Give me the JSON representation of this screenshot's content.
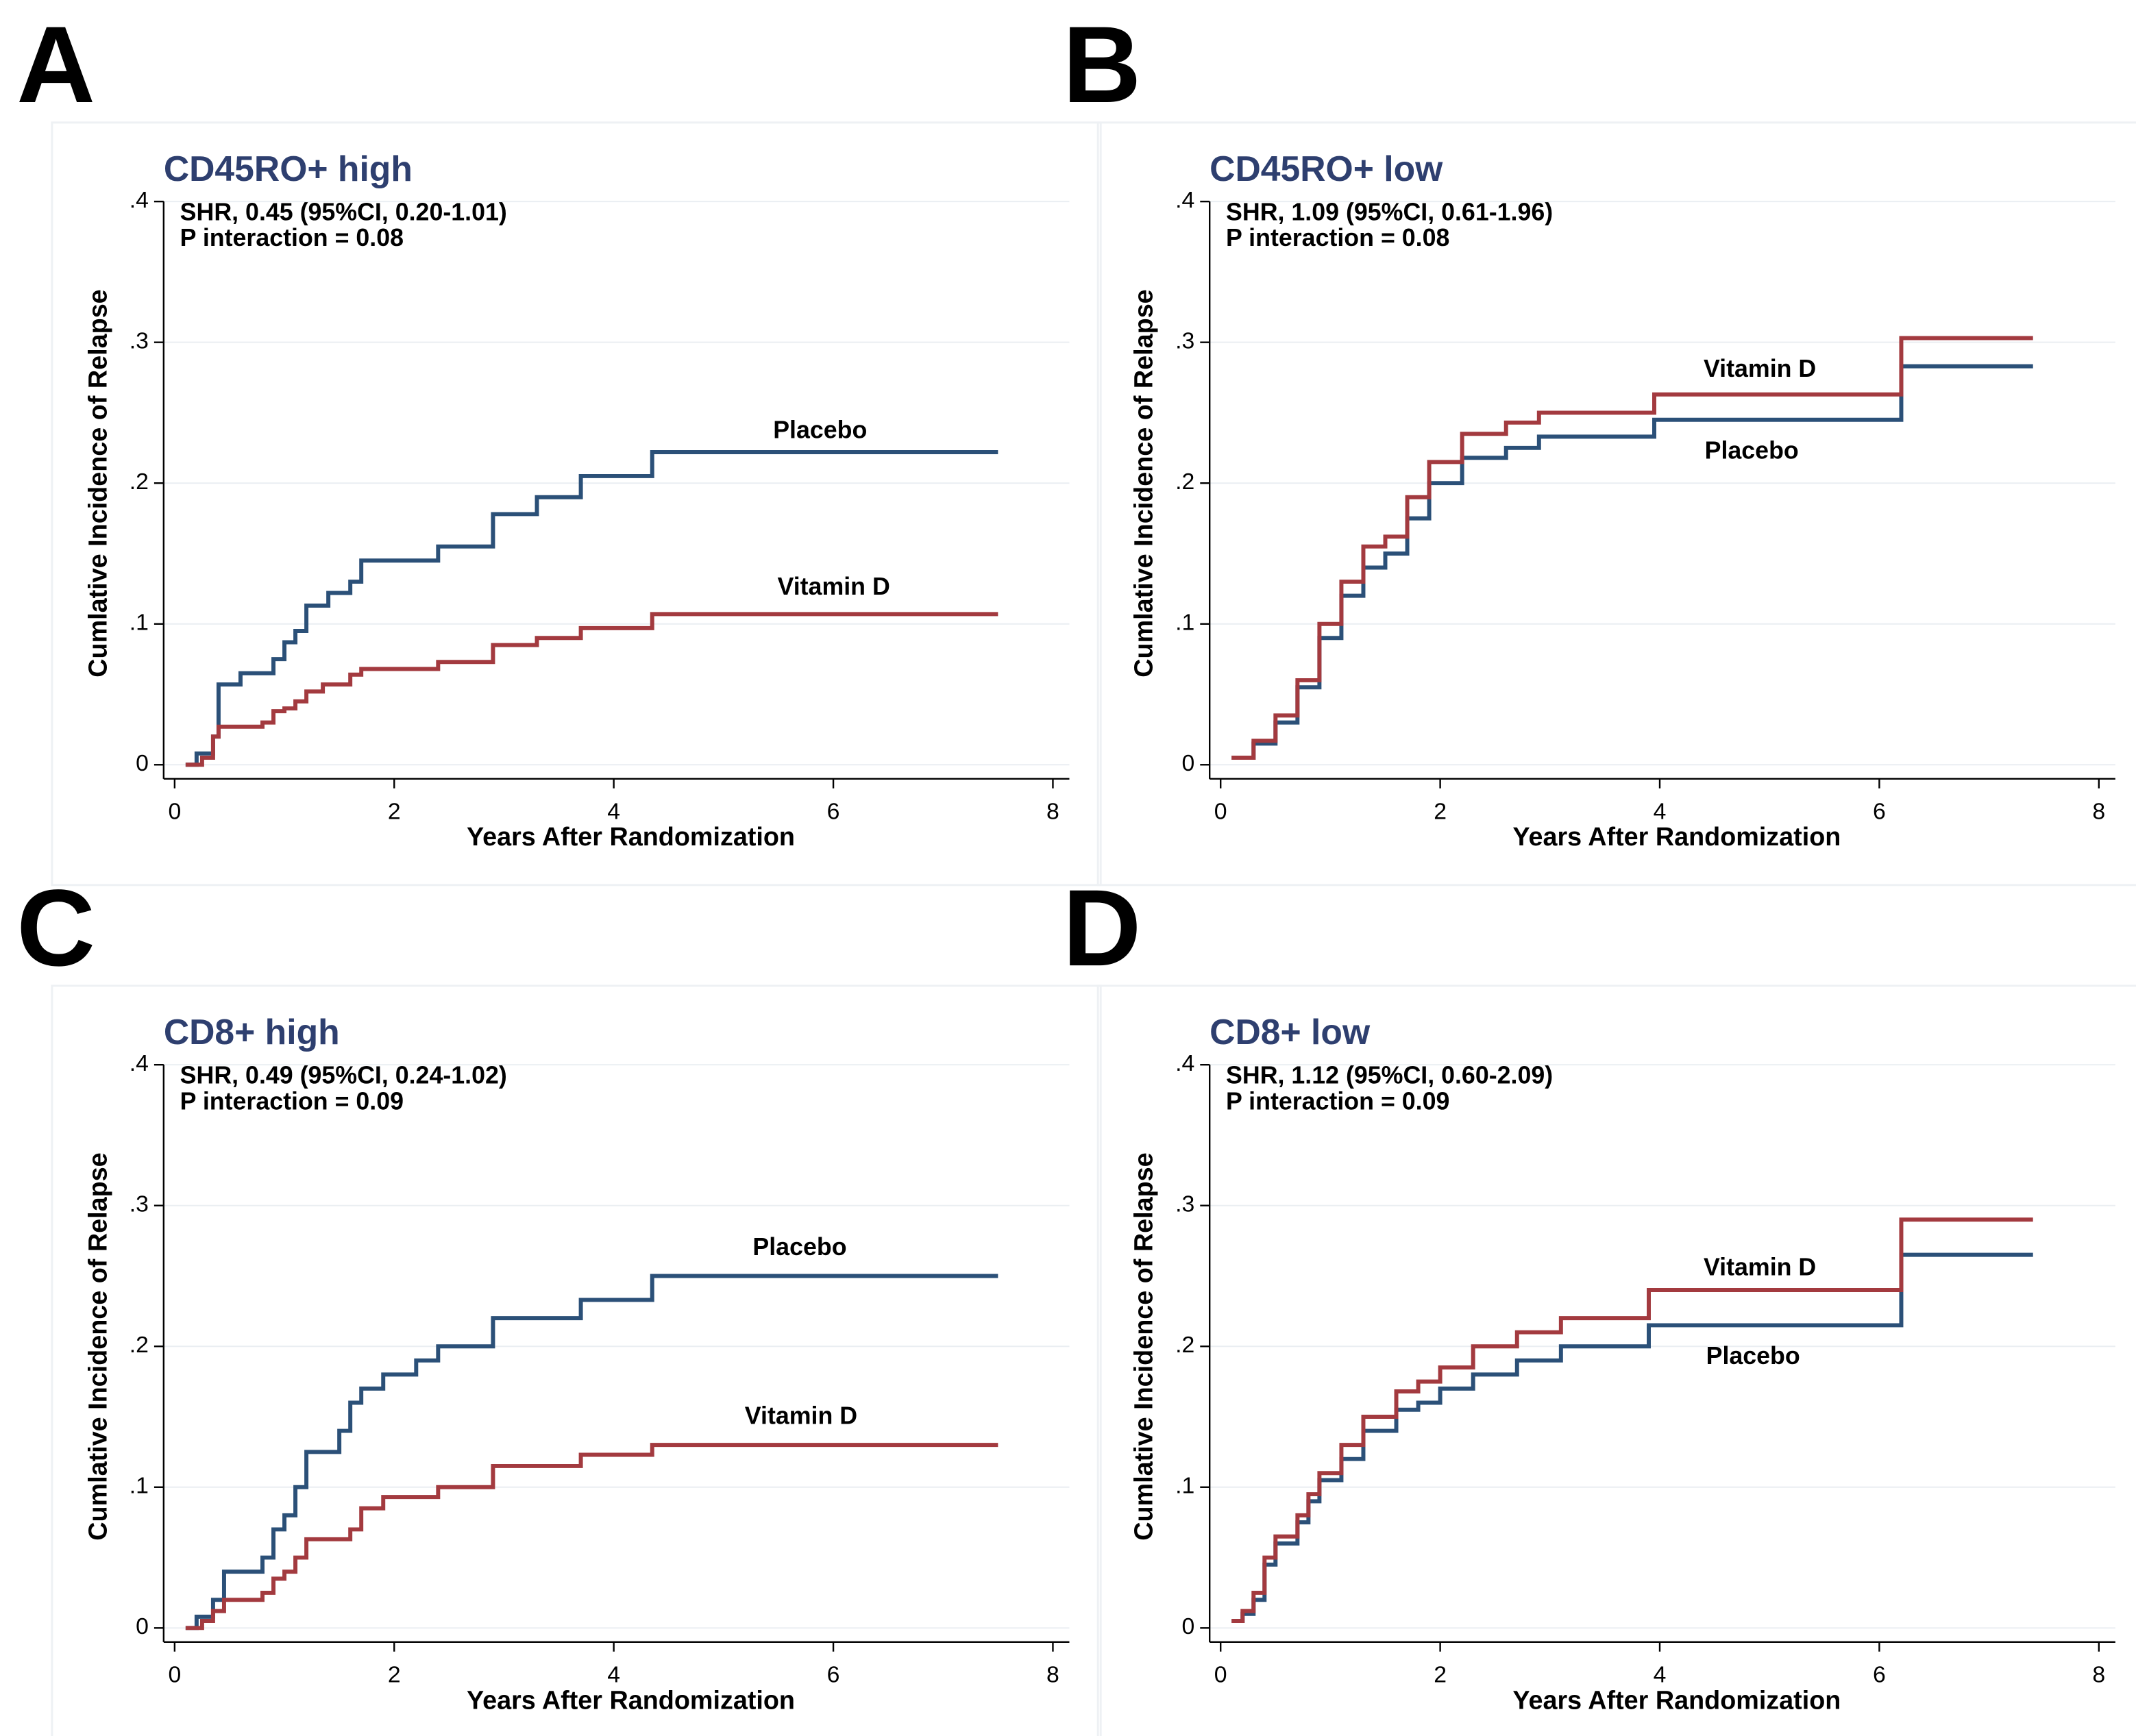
{
  "chart_data": [
    {
      "type": "line",
      "step": "post",
      "panel": "A",
      "title": "CD45RO+ high",
      "annotations": [
        "SHR, 0.45 (95%CI, 0.20-1.01)",
        "P interaction = 0.08"
      ],
      "xlabel": "Years  After Randomization",
      "ylabel": "Cumlative Incidence of Relapse",
      "xlim": [
        -0.1,
        8.15
      ],
      "ylim": [
        -0.01,
        0.4
      ],
      "xticks": [
        0,
        2,
        4,
        6,
        8
      ],
      "yticks": [
        0,
        {
          "value": 0.1,
          "label": ".1"
        },
        {
          "value": 0.2,
          "label": ".2"
        },
        {
          "value": 0.3,
          "label": ".3"
        },
        {
          "value": 0.4,
          "label": ".4"
        }
      ],
      "grid": true,
      "series": [
        {
          "name": "Placebo",
          "color": "#2b5078",
          "x": [
            0.1,
            0.2,
            0.35,
            0.4,
            0.6,
            0.9,
            1.0,
            1.1,
            1.2,
            1.4,
            1.6,
            1.7,
            2.4,
            2.9,
            3.3,
            3.7,
            4.35,
            7.5
          ],
          "values": [
            0,
            0.008,
            0.02,
            0.057,
            0.065,
            0.075,
            0.087,
            0.095,
            0.113,
            0.122,
            0.13,
            0.145,
            0.155,
            0.178,
            0.19,
            0.205,
            0.222,
            0.222
          ]
        },
        {
          "name": "Vitamin D",
          "color": "#a33a3f",
          "x": [
            0.1,
            0.25,
            0.35,
            0.4,
            0.8,
            0.9,
            1.0,
            1.1,
            1.2,
            1.35,
            1.6,
            1.7,
            2.4,
            2.9,
            3.3,
            3.7,
            4.35,
            7.5
          ],
          "values": [
            0,
            0.005,
            0.02,
            0.027,
            0.03,
            0.038,
            0.04,
            0.045,
            0.052,
            0.057,
            0.064,
            0.068,
            0.073,
            0.085,
            0.09,
            0.097,
            0.107,
            0.107
          ]
        }
      ]
    },
    {
      "type": "line",
      "step": "post",
      "panel": "B",
      "title": "CD45RO+ low",
      "annotations": [
        "SHR, 1.09 (95%CI, 0.61-1.96)",
        "P interaction = 0.08"
      ],
      "xlabel": "Years  After Randomization",
      "ylabel": "Cumlative Incidence of Relapse",
      "xlim": [
        -0.1,
        8.15
      ],
      "ylim": [
        -0.01,
        0.4
      ],
      "xticks": [
        0,
        2,
        4,
        6,
        8
      ],
      "yticks": [
        0,
        {
          "value": 0.1,
          "label": ".1"
        },
        {
          "value": 0.2,
          "label": ".2"
        },
        {
          "value": 0.3,
          "label": ".3"
        },
        {
          "value": 0.4,
          "label": ".4"
        }
      ],
      "grid": true,
      "series": [
        {
          "name": "Placebo",
          "color": "#2b5078",
          "x": [
            0.1,
            0.3,
            0.5,
            0.7,
            0.9,
            1.1,
            1.3,
            1.5,
            1.7,
            1.9,
            2.2,
            2.6,
            2.9,
            3.95,
            6.2,
            7.4
          ],
          "values": [
            0.005,
            0.015,
            0.03,
            0.055,
            0.09,
            0.12,
            0.14,
            0.15,
            0.175,
            0.2,
            0.218,
            0.225,
            0.233,
            0.245,
            0.283,
            0.283
          ]
        },
        {
          "name": "Vitamin D",
          "color": "#a33a3f",
          "x": [
            0.1,
            0.3,
            0.5,
            0.7,
            0.9,
            1.1,
            1.3,
            1.5,
            1.7,
            1.9,
            2.2,
            2.6,
            2.9,
            3.95,
            6.2,
            7.4
          ],
          "values": [
            0.005,
            0.017,
            0.035,
            0.06,
            0.1,
            0.13,
            0.155,
            0.162,
            0.19,
            0.215,
            0.235,
            0.243,
            0.25,
            0.263,
            0.303,
            0.303
          ]
        }
      ]
    },
    {
      "type": "line",
      "step": "post",
      "panel": "C",
      "title": "CD8+ high",
      "annotations": [
        "SHR, 0.49 (95%CI, 0.24-1.02)",
        "P interaction = 0.09"
      ],
      "xlabel": "Years  After Randomization",
      "ylabel": "Cumlative Incidence of Relapse",
      "xlim": [
        -0.1,
        8.15
      ],
      "ylim": [
        -0.01,
        0.4
      ],
      "xticks": [
        0,
        2,
        4,
        6,
        8
      ],
      "yticks": [
        0,
        {
          "value": 0.1,
          "label": ".1"
        },
        {
          "value": 0.2,
          "label": ".2"
        },
        {
          "value": 0.3,
          "label": ".3"
        },
        {
          "value": 0.4,
          "label": ".4"
        }
      ],
      "grid": true,
      "series": [
        {
          "name": "Placebo",
          "color": "#2b5078",
          "x": [
            0.1,
            0.2,
            0.35,
            0.45,
            0.8,
            0.9,
            1.0,
            1.1,
            1.2,
            1.5,
            1.6,
            1.7,
            1.9,
            2.2,
            2.4,
            2.9,
            3.7,
            4.35,
            7.5
          ],
          "values": [
            0,
            0.008,
            0.02,
            0.04,
            0.05,
            0.07,
            0.08,
            0.1,
            0.125,
            0.14,
            0.16,
            0.17,
            0.18,
            0.19,
            0.2,
            0.22,
            0.233,
            0.25,
            0.25
          ]
        },
        {
          "name": "Vitamin D",
          "color": "#a33a3f",
          "x": [
            0.1,
            0.25,
            0.35,
            0.45,
            0.8,
            0.9,
            1.0,
            1.1,
            1.2,
            1.6,
            1.7,
            1.9,
            2.4,
            2.9,
            3.7,
            4.35,
            7.5
          ],
          "values": [
            0,
            0.005,
            0.012,
            0.02,
            0.025,
            0.035,
            0.04,
            0.05,
            0.063,
            0.07,
            0.085,
            0.093,
            0.1,
            0.115,
            0.123,
            0.13,
            0.13
          ]
        }
      ]
    },
    {
      "type": "line",
      "step": "post",
      "panel": "D",
      "title": "CD8+ low",
      "annotations": [
        "SHR, 1.12 (95%CI, 0.60-2.09)",
        "P interaction = 0.09"
      ],
      "xlabel": "Years  After Randomization",
      "ylabel": "Cumlative Incidence of Relapse",
      "xlim": [
        -0.1,
        8.15
      ],
      "ylim": [
        -0.01,
        0.4
      ],
      "xticks": [
        0,
        2,
        4,
        6,
        8
      ],
      "yticks": [
        0,
        {
          "value": 0.1,
          "label": ".1"
        },
        {
          "value": 0.2,
          "label": ".2"
        },
        {
          "value": 0.3,
          "label": ".3"
        },
        {
          "value": 0.4,
          "label": ".4"
        }
      ],
      "grid": true,
      "series": [
        {
          "name": "Placebo",
          "color": "#2b5078",
          "x": [
            0.1,
            0.2,
            0.3,
            0.4,
            0.5,
            0.7,
            0.8,
            0.9,
            1.1,
            1.3,
            1.6,
            1.8,
            2.0,
            2.3,
            2.7,
            3.1,
            3.9,
            6.2,
            7.4
          ],
          "values": [
            0.005,
            0.01,
            0.02,
            0.045,
            0.06,
            0.075,
            0.09,
            0.105,
            0.12,
            0.14,
            0.155,
            0.16,
            0.17,
            0.18,
            0.19,
            0.2,
            0.215,
            0.265,
            0.265
          ]
        },
        {
          "name": "Vitamin D",
          "color": "#a33a3f",
          "x": [
            0.1,
            0.2,
            0.3,
            0.4,
            0.5,
            0.7,
            0.8,
            0.9,
            1.1,
            1.3,
            1.6,
            1.8,
            2.0,
            2.3,
            2.7,
            3.1,
            3.9,
            6.2,
            7.4
          ],
          "values": [
            0.005,
            0.012,
            0.025,
            0.05,
            0.065,
            0.08,
            0.095,
            0.11,
            0.13,
            0.15,
            0.168,
            0.175,
            0.185,
            0.2,
            0.21,
            0.22,
            0.24,
            0.29,
            0.29
          ]
        }
      ]
    }
  ]
}
